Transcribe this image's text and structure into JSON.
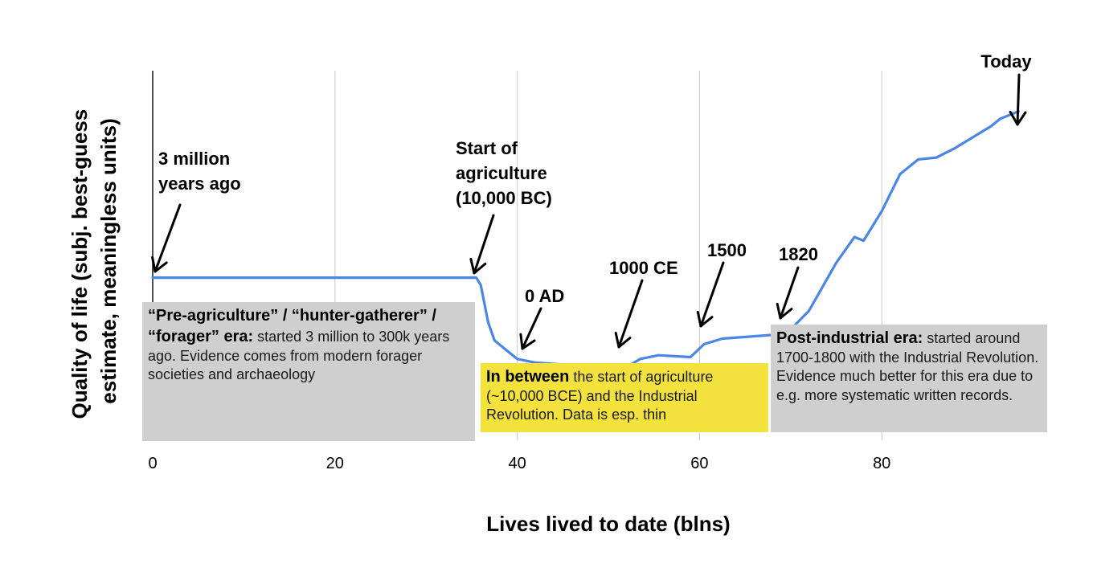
{
  "chart_data": {
    "type": "line",
    "xlabel": "Lives lived to date (blns)",
    "ylabel": "Quality of life (subj. best-guess estimate, meaningless units)",
    "xlim": [
      0,
      100
    ],
    "ylim": [
      0,
      100
    ],
    "x_ticks": [
      0,
      20,
      40,
      60,
      80
    ],
    "grid": "vertical",
    "series": [
      {
        "color": "#4a86e8",
        "points": [
          [
            0,
            44
          ],
          [
            35.5,
            44
          ],
          [
            36,
            42
          ],
          [
            36.8,
            32
          ],
          [
            37.5,
            27
          ],
          [
            38.5,
            25
          ],
          [
            40,
            22
          ],
          [
            42,
            21
          ],
          [
            45,
            20.5
          ],
          [
            50,
            20.3
          ],
          [
            52,
            19.8
          ],
          [
            53.5,
            22
          ],
          [
            55.5,
            23
          ],
          [
            59,
            22.5
          ],
          [
            60.5,
            26
          ],
          [
            62.5,
            27.5
          ],
          [
            68,
            28.5
          ],
          [
            70,
            30
          ],
          [
            72,
            35
          ],
          [
            75,
            48
          ],
          [
            77,
            55
          ],
          [
            78,
            54
          ],
          [
            80,
            62
          ],
          [
            82,
            72
          ],
          [
            84,
            76
          ],
          [
            86,
            76.5
          ],
          [
            88,
            79
          ],
          [
            90,
            82
          ],
          [
            92,
            85
          ],
          [
            93,
            87
          ],
          [
            95,
            89
          ]
        ]
      }
    ],
    "annotations": [
      {
        "label_lines": [
          "3 million",
          "years ago"
        ],
        "x": 0
      },
      {
        "label_lines": [
          "Start of",
          "agriculture",
          "(10,000 BC)"
        ],
        "x": 35.5
      },
      {
        "label_lines": [
          "0 AD"
        ],
        "x": 40.5
      },
      {
        "label_lines": [
          "1000 CE"
        ],
        "x": 51.5
      },
      {
        "label_lines": [
          "1500"
        ],
        "x": 60.5
      },
      {
        "label_lines": [
          "1820"
        ],
        "x": 69.5
      },
      {
        "label_lines": [
          "Today"
        ],
        "x": 95
      }
    ]
  },
  "eras": {
    "pre": {
      "title": "“Pre-agriculture” / “hunter-gatherer” / “forager” era:",
      "text": " started 3 million to 300k years ago. Evidence comes from modern forager societies and archaeology"
    },
    "between": {
      "title": "In between",
      "text": " the start of agriculture (~10,000 BCE) and the Industrial Revolution. Data is esp. thin"
    },
    "post": {
      "title": "Post-industrial era:",
      "text": " started around 1700-1800 with the Industrial Revolution. Evidence much better for this era due to e.g. more systematic written records."
    }
  }
}
